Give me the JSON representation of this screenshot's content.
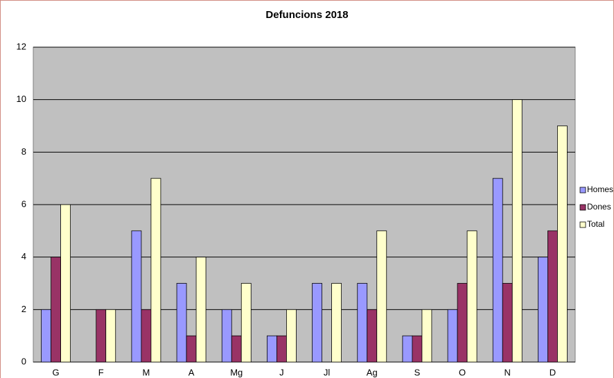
{
  "chart_data": {
    "type": "bar",
    "title": "Defuncions 2018",
    "categories": [
      "G",
      "F",
      "M",
      "A",
      "Mg",
      "J",
      "Jl",
      "Ag",
      "S",
      "O",
      "N",
      "D"
    ],
    "series": [
      {
        "name": "Homes",
        "color": "#9999ff",
        "values": [
          2,
          0,
          5,
          3,
          2,
          1,
          3,
          3,
          1,
          2,
          7,
          4
        ]
      },
      {
        "name": "Dones",
        "color": "#993366",
        "values": [
          4,
          2,
          2,
          1,
          1,
          1,
          0,
          2,
          1,
          3,
          3,
          5
        ]
      },
      {
        "name": "Total",
        "color": "#ffffcc",
        "values": [
          6,
          2,
          7,
          4,
          3,
          2,
          3,
          5,
          2,
          5,
          10,
          9
        ]
      }
    ],
    "ylim": [
      0,
      12
    ],
    "yticks": [
      0,
      2,
      4,
      6,
      8,
      10,
      12
    ],
    "grid": true,
    "legend": "right"
  }
}
